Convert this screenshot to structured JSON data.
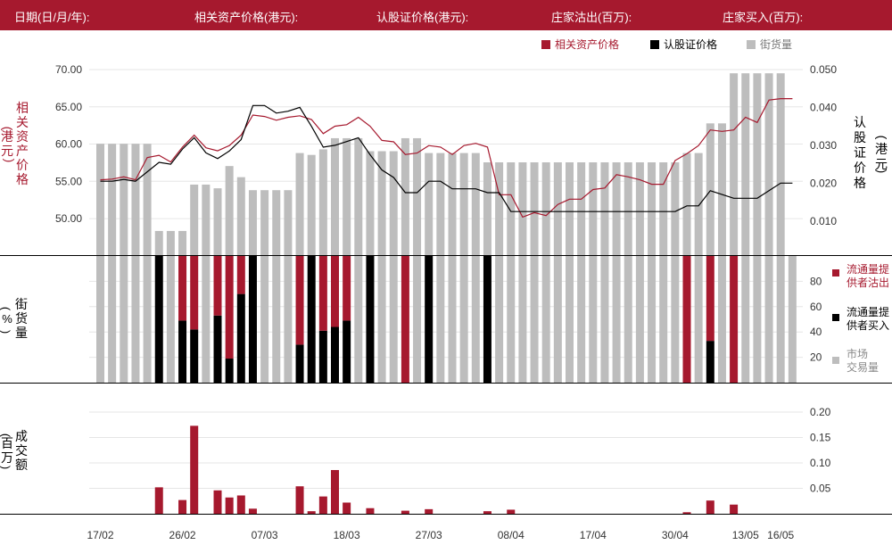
{
  "header": {
    "date_label": "日期(日/月/年):",
    "underlying_label": "相关资产价格(港元):",
    "warrant_label": "认股证价格(港元):",
    "sold_label": "庄家沽出(百万):",
    "bought_label": "庄家买入(百万):"
  },
  "colors": {
    "header_bg": "#a6192e",
    "underlying": "#a6192e",
    "warrant": "#000000",
    "gray": "#bdbdbd"
  },
  "legend": {
    "underlying": "相关资产价格",
    "warrant": "认股证价格",
    "outstanding": "街货量"
  },
  "axis_titles": {
    "left_price": "相关资产价格(港元)",
    "right_price": "认股证价格(港元)",
    "left_outstanding": "街货量(%)",
    "left_turnover": "成交额(百万)"
  },
  "mid_legend": {
    "lp_sell": "流通量提供者沽出",
    "lp_buy": "流通量提供者买入",
    "market": "市场交易量"
  },
  "chart_data": [
    {
      "id": "price",
      "type": "line",
      "x_labels": [
        "17/02",
        "26/02",
        "07/03",
        "18/03",
        "27/03",
        "08/04",
        "17/04",
        "30/04",
        "13/05",
        "16/05"
      ],
      "left_axis": {
        "ticks": [
          "70.00",
          "65.00",
          "60.00",
          "55.00",
          "50.00"
        ],
        "range": [
          45.1,
          70
        ]
      },
      "right_axis": {
        "ticks": [
          "0.050",
          "0.040",
          "0.030",
          "0.020",
          "0.010"
        ],
        "range": [
          0.001,
          0.05
        ]
      },
      "series": [
        {
          "name": "相关资产价格",
          "axis": "left",
          "values": [
            55.2,
            55.3,
            55.6,
            55.2,
            58.2,
            58.5,
            57.6,
            59.6,
            61.2,
            59.5,
            59.1,
            59.8,
            61.2,
            63.9,
            63.7,
            63.2,
            63.6,
            63.8,
            63.3,
            61.4,
            62.4,
            62.6,
            63.6,
            62.4,
            60.5,
            60.3,
            58.6,
            58.8,
            59.8,
            59.6,
            58.6,
            59.8,
            60.1,
            59.6,
            53.2,
            53.2,
            50.2,
            50.8,
            50.4,
            51.9,
            52.6,
            52.6,
            53.9,
            54.1,
            55.9,
            55.6,
            55.2,
            54.6,
            54.6,
            57.8,
            58.7,
            59.8,
            61.9,
            61.7,
            61.9,
            63.6,
            62.9,
            65.9,
            66.1,
            66.1
          ]
        },
        {
          "name": "认股证价格",
          "axis": "right",
          "values": [
            0.0205,
            0.0205,
            0.021,
            0.0205,
            0.023,
            0.0255,
            0.025,
            0.029,
            0.032,
            0.028,
            0.0265,
            0.0285,
            0.0315,
            0.0405,
            0.0405,
            0.0385,
            0.039,
            0.04,
            0.035,
            0.0295,
            0.03,
            0.031,
            0.032,
            0.0275,
            0.0235,
            0.0215,
            0.0175,
            0.0175,
            0.0205,
            0.0205,
            0.0185,
            0.0185,
            0.0185,
            0.0175,
            0.0175,
            0.0125,
            0.0125,
            0.0125,
            0.0125,
            0.0125,
            0.0125,
            0.0125,
            0.0125,
            0.0125,
            0.0125,
            0.0125,
            0.0125,
            0.0125,
            0.0125,
            0.0125,
            0.014,
            0.014,
            0.018,
            0.017,
            0.016,
            0.016,
            0.016,
            0.018,
            0.02,
            0.02
          ]
        }
      ],
      "outstanding_pct": [
        60,
        60,
        60,
        60,
        60,
        13,
        13,
        13,
        38,
        38,
        36,
        48,
        42,
        35,
        35,
        35,
        35,
        55,
        54,
        57,
        63,
        63,
        63,
        56,
        56,
        56,
        63,
        63,
        55,
        55,
        55,
        55,
        55,
        50,
        50,
        50,
        50,
        50,
        50,
        50,
        50,
        50,
        50,
        50,
        50,
        50,
        50,
        50,
        50,
        50,
        55,
        55,
        71,
        71,
        98,
        98,
        98,
        98,
        98,
        0
      ]
    },
    {
      "id": "volume",
      "type": "bar",
      "y_axis": {
        "ticks": [
          "80",
          "60",
          "40",
          "20"
        ],
        "range": [
          0,
          100
        ]
      },
      "market_pct": [
        100,
        100,
        100,
        100,
        100,
        100,
        100,
        100,
        100,
        100,
        100,
        100,
        100,
        100,
        100,
        100,
        100,
        100,
        100,
        100,
        100,
        100,
        100,
        100,
        100,
        100,
        100,
        100,
        100,
        100,
        100,
        100,
        100,
        100,
        100,
        100,
        100,
        100,
        100,
        100,
        100,
        100,
        100,
        100,
        100,
        100,
        100,
        100,
        100,
        100,
        100,
        100,
        100,
        100,
        100,
        100,
        100,
        100,
        100,
        100
      ],
      "lp_buy_pct": [
        0,
        0,
        0,
        0,
        0,
        100,
        0,
        49,
        42,
        0,
        53,
        19,
        70,
        100,
        0,
        0,
        0,
        30,
        100,
        41,
        44,
        49,
        0,
        100,
        0,
        0,
        0,
        0,
        100,
        0,
        0,
        0,
        0,
        100,
        0,
        0,
        0,
        0,
        0,
        0,
        0,
        0,
        0,
        0,
        0,
        0,
        0,
        0,
        0,
        0,
        0,
        0,
        33,
        0,
        0,
        0,
        0,
        0,
        0,
        0
      ],
      "lp_sell_pct": [
        0,
        0,
        0,
        0,
        0,
        0,
        0,
        51,
        58,
        0,
        47,
        81,
        30,
        0,
        0,
        0,
        0,
        70,
        0,
        59,
        56,
        51,
        0,
        0,
        0,
        0,
        100,
        0,
        0,
        0,
        0,
        0,
        0,
        0,
        0,
        0,
        0,
        0,
        0,
        0,
        0,
        0,
        0,
        0,
        0,
        0,
        0,
        0,
        0,
        0,
        100,
        0,
        67,
        0,
        100,
        0,
        0,
        0,
        0,
        0
      ]
    },
    {
      "id": "turnover",
      "type": "bar",
      "y_axis": {
        "ticks": [
          "0.20",
          "0.15",
          "0.10",
          "0.05"
        ],
        "range": [
          0,
          0.2
        ]
      },
      "values": [
        0,
        0,
        0,
        0,
        0,
        0.052,
        0,
        0.027,
        0.173,
        0,
        0.046,
        0.032,
        0.036,
        0.01,
        0,
        0,
        0,
        0.054,
        0.005,
        0.034,
        0.086,
        0.022,
        0,
        0.011,
        0,
        0,
        0.006,
        0,
        0.009,
        0,
        0,
        0,
        0,
        0.005,
        0,
        0.008,
        0,
        0,
        0,
        0,
        0,
        0,
        0,
        0,
        0,
        0,
        0,
        0,
        0,
        0,
        0.003,
        0,
        0.026,
        0,
        0.018,
        0,
        0,
        0,
        0,
        0
      ]
    }
  ]
}
